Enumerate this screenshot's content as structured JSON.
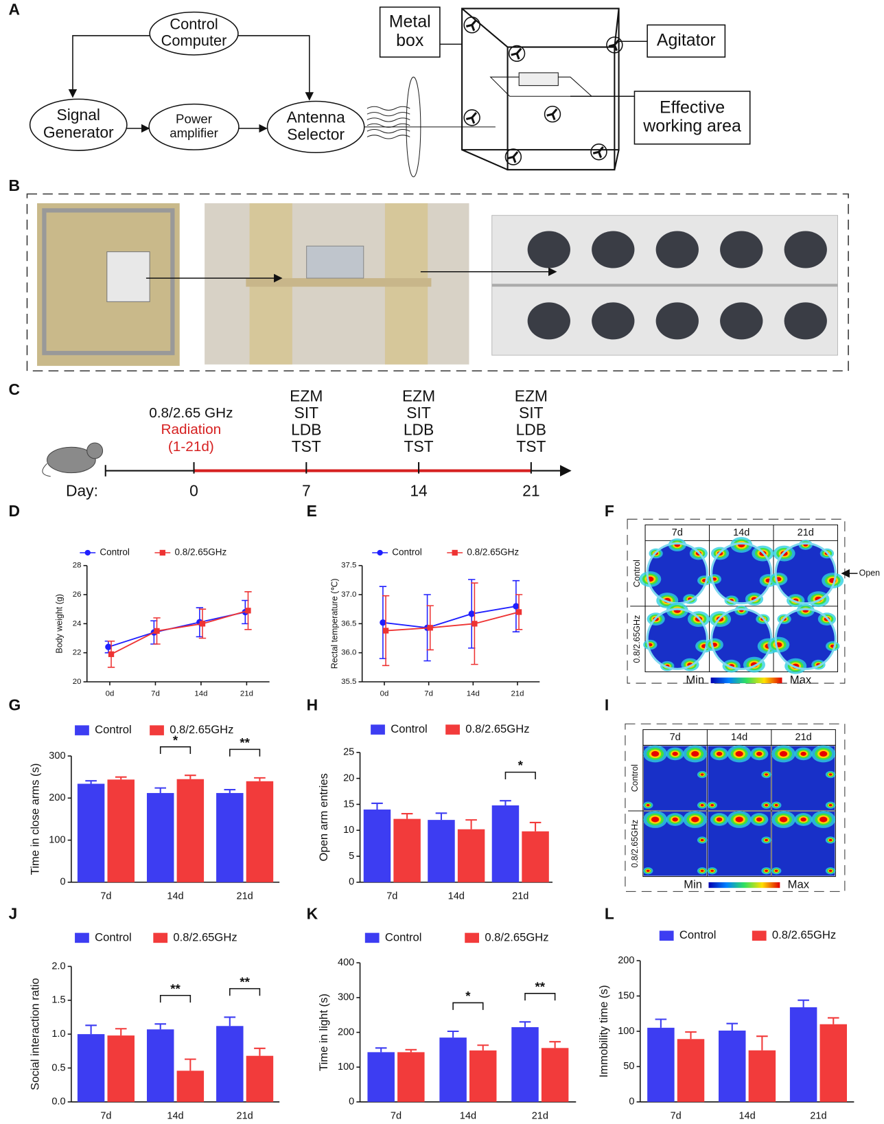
{
  "panel_labels": [
    "A",
    "B",
    "C",
    "D",
    "E",
    "F",
    "G",
    "H",
    "I",
    "J",
    "K",
    "L"
  ],
  "diagram": {
    "nodes": [
      [
        "Control",
        "Computer"
      ],
      [
        "Signal",
        "Generator"
      ],
      [
        "Power",
        "amplifier"
      ],
      [
        "Antenna",
        "Selector"
      ],
      [
        "Metal",
        "box"
      ],
      [
        "Agitator"
      ],
      [
        "Effective",
        "working area"
      ]
    ]
  },
  "timeline": {
    "frequency": "0.8/2.65 GHz",
    "radiation": "Radiation",
    "period": "(1-21d)",
    "tests": [
      "EZM",
      "SIT",
      "LDB",
      "TST"
    ],
    "day_label": "Day:",
    "days": [
      0,
      7,
      14,
      21
    ]
  },
  "heatmaps": [
    {
      "columns": [
        "7d",
        "14d",
        "21d"
      ],
      "rows": [
        "Control",
        "0.8/2.65GHz"
      ],
      "min": "Min",
      "max": "Max",
      "annotation": "Open"
    },
    {
      "columns": [
        "7d",
        "14d",
        "21d"
      ],
      "rows": [
        "Control",
        "0.8/2.65GHz"
      ],
      "min": "Min",
      "max": "Max"
    }
  ],
  "chart_data": [
    {
      "type": "line",
      "ylabel": "Body weight (g)",
      "categories": [
        "0d",
        "7d",
        "14d",
        "21d"
      ],
      "ylim": [
        20,
        28
      ],
      "yticks": [
        20,
        22,
        24,
        26,
        28
      ],
      "series": [
        {
          "name": "Control",
          "color": "#1f1fff",
          "values": [
            22.4,
            23.4,
            24.1,
            24.8
          ],
          "errors": [
            0.4,
            0.8,
            1.0,
            0.8
          ]
        },
        {
          "name": "0.8/2.65GHz",
          "color": "#ee3333",
          "values": [
            21.9,
            23.5,
            24.0,
            24.9
          ],
          "errors": [
            0.9,
            0.9,
            1.0,
            1.3
          ]
        }
      ]
    },
    {
      "type": "line",
      "ylabel": "Rectal temperature (℃)",
      "categories": [
        "0d",
        "7d",
        "14d",
        "21d"
      ],
      "ylim": [
        35.5,
        37.5
      ],
      "yticks": [
        35.5,
        {
          "value": 36,
          "label": "36.0"
        },
        36.5,
        {
          "value": 37,
          "label": "37.0"
        },
        37.5
      ],
      "series": [
        {
          "name": "Control",
          "color": "#1f1fff",
          "values": [
            36.52,
            36.43,
            36.67,
            36.8
          ],
          "errors": [
            0.62,
            0.57,
            0.59,
            0.44
          ]
        },
        {
          "name": "0.8/2.65GHz",
          "color": "#ee3333",
          "values": [
            36.38,
            36.43,
            36.5,
            36.7
          ],
          "errors": [
            0.6,
            0.38,
            0.7,
            0.3
          ]
        }
      ]
    },
    {
      "type": "bar",
      "ylabel": "Time in close arms (s)",
      "categories": [
        "7d",
        "14d",
        "21d"
      ],
      "ylim": [
        0,
        300
      ],
      "yticks": [
        0,
        100,
        200,
        300
      ],
      "significance": [
        null,
        "*",
        "**"
      ],
      "series": [
        {
          "name": "Control",
          "color": "#3d3df2",
          "values": [
            234,
            212,
            212
          ],
          "errors": [
            7,
            12,
            8
          ]
        },
        {
          "name": "0.8/2.65GHz",
          "color": "#f23b3b",
          "values": [
            244,
            245,
            240
          ],
          "errors": [
            6,
            9,
            8
          ]
        }
      ]
    },
    {
      "type": "bar",
      "ylabel": "Open arm entries",
      "categories": [
        "7d",
        "14d",
        "21d"
      ],
      "ylim": [
        0,
        25
      ],
      "yticks": [
        0,
        5,
        10,
        15,
        20,
        25
      ],
      "significance": [
        null,
        null,
        "*"
      ],
      "series": [
        {
          "name": "Control",
          "color": "#3d3df2",
          "values": [
            14,
            12,
            14.8
          ],
          "errors": [
            1.2,
            1.3,
            0.9
          ]
        },
        {
          "name": "0.8/2.65GHz",
          "color": "#f23b3b",
          "values": [
            12.2,
            10.2,
            9.8
          ],
          "errors": [
            1,
            1.8,
            1.7
          ]
        }
      ]
    },
    {
      "type": "bar",
      "ylabel": "Social interaction ratio",
      "categories": [
        "7d",
        "14d",
        "21d"
      ],
      "ylim": [
        0,
        2
      ],
      "yticks": [
        {
          "value": 0,
          "label": "0.0"
        },
        0.5,
        {
          "value": 1,
          "label": "1.0"
        },
        1.5,
        {
          "value": 2,
          "label": "2.0"
        }
      ],
      "significance": [
        null,
        "**",
        "**"
      ],
      "series": [
        {
          "name": "Control",
          "color": "#3d3df2",
          "values": [
            1.0,
            1.07,
            1.12
          ],
          "errors": [
            0.13,
            0.08,
            0.13
          ]
        },
        {
          "name": "0.8/2.65GHz",
          "color": "#f23b3b",
          "values": [
            0.98,
            0.46,
            0.68
          ],
          "errors": [
            0.1,
            0.17,
            0.11
          ]
        }
      ]
    },
    {
      "type": "bar",
      "ylabel": "Time in light (s)",
      "categories": [
        "7d",
        "14d",
        "21d"
      ],
      "ylim": [
        0,
        400
      ],
      "yticks": [
        0,
        100,
        200,
        300,
        400
      ],
      "significance": [
        null,
        "*",
        "**"
      ],
      "series": [
        {
          "name": "Control",
          "color": "#3d3df2",
          "values": [
            143,
            185,
            215
          ],
          "errors": [
            12,
            18,
            15
          ]
        },
        {
          "name": "0.8/2.65GHz",
          "color": "#f23b3b",
          "values": [
            143,
            148,
            155
          ],
          "errors": [
            7,
            15,
            18
          ]
        }
      ]
    },
    {
      "type": "bar",
      "ylabel": "Immobility time (s)",
      "categories": [
        "7d",
        "14d",
        "21d"
      ],
      "ylim": [
        0,
        200
      ],
      "yticks": [
        0,
        50,
        100,
        150,
        200
      ],
      "series": [
        {
          "name": "Control",
          "color": "#3d3df2",
          "values": [
            105,
            101,
            134
          ],
          "errors": [
            12,
            10,
            10
          ]
        },
        {
          "name": "0.8/2.65GHz",
          "color": "#f23b3b",
          "values": [
            89,
            73,
            110
          ],
          "errors": [
            10,
            20,
            9
          ]
        }
      ]
    }
  ]
}
